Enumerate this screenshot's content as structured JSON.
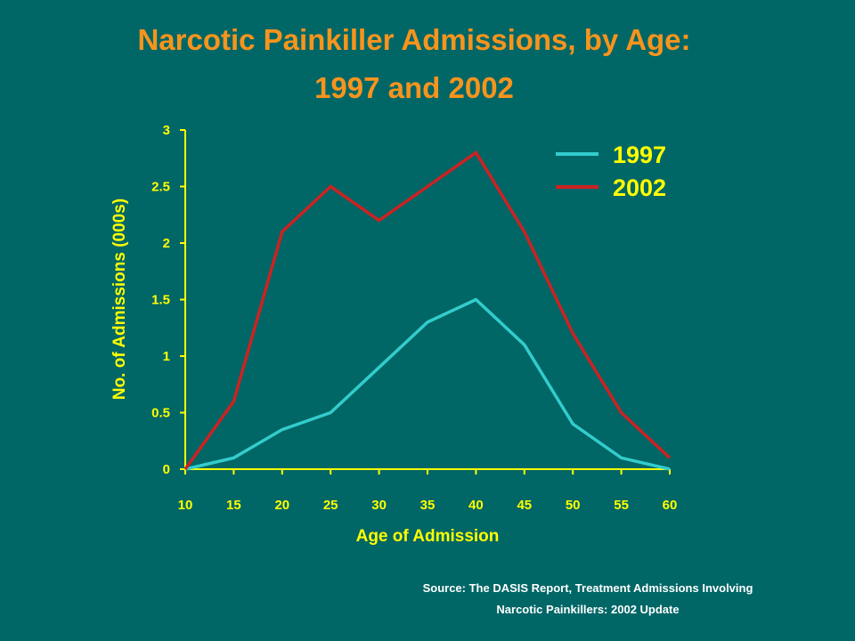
{
  "title_line1": "Narcotic Painkiller Admissions, by Age:",
  "title_line2": "1997 and 2002",
  "source_line1": "Source: The DASIS Report, Treatment Admissions Involving",
  "source_line2": "Narcotic Painkillers: 2002 Update",
  "colors": {
    "background": "#006666",
    "title": "#F7941D",
    "axis": "#FFFF00",
    "series_1997": "#33CCCC",
    "series_2002": "#CC2222"
  },
  "chart_data": {
    "type": "line",
    "xlabel": "Age of Admission",
    "ylabel": "No. of Admissions (000s)",
    "x": [
      10,
      15,
      20,
      25,
      30,
      35,
      40,
      45,
      50,
      55,
      60
    ],
    "xlim": [
      10,
      60
    ],
    "ylim": [
      0,
      3
    ],
    "x_ticks": [
      "10",
      "15",
      "20",
      "25",
      "30",
      "35",
      "40",
      "45",
      "50",
      "55",
      "60"
    ],
    "y_ticks": [
      "0",
      "0.5",
      "1",
      "1.5",
      "2",
      "2.5",
      "3"
    ],
    "legend_position": "top-right",
    "grid": false,
    "series": [
      {
        "name": "1997",
        "color": "#33CCCC",
        "values": [
          0,
          0.1,
          0.35,
          0.5,
          0.9,
          1.3,
          1.5,
          1.1,
          0.4,
          0.1,
          0
        ]
      },
      {
        "name": "2002",
        "color": "#CC2222",
        "values": [
          0,
          0.6,
          2.1,
          2.5,
          2.2,
          2.5,
          2.8,
          2.1,
          1.2,
          0.5,
          0.1
        ]
      }
    ]
  }
}
